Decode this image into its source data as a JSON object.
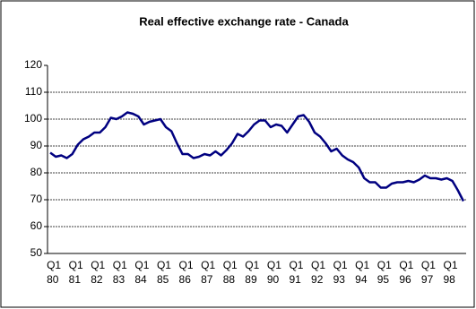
{
  "chart_data": {
    "type": "line",
    "title": "Real effective exchange rate - Canada",
    "categories": [
      [
        "Q1",
        "80"
      ],
      null,
      null,
      null,
      [
        "Q1",
        "81"
      ],
      null,
      null,
      null,
      [
        "Q1",
        "82"
      ],
      null,
      null,
      null,
      [
        "Q1",
        "83"
      ],
      null,
      null,
      null,
      [
        "Q1",
        "84"
      ],
      null,
      null,
      null,
      [
        "Q1",
        "85"
      ],
      null,
      null,
      null,
      [
        "Q1",
        "86"
      ],
      null,
      null,
      null,
      [
        "Q1",
        "87"
      ],
      null,
      null,
      null,
      [
        "Q1",
        "88"
      ],
      null,
      null,
      null,
      [
        "Q1",
        "89"
      ],
      null,
      null,
      null,
      [
        "Q1",
        "90"
      ],
      null,
      null,
      null,
      [
        "Q1",
        "91"
      ],
      null,
      null,
      null,
      [
        "Q1",
        "92"
      ],
      null,
      null,
      null,
      [
        "Q1",
        "93"
      ],
      null,
      null,
      null,
      [
        "Q1",
        "94"
      ],
      null,
      null,
      null,
      [
        "Q1",
        "95"
      ],
      null,
      null,
      null,
      [
        "Q1",
        "96"
      ],
      null,
      null,
      null,
      [
        "Q1",
        "97"
      ],
      null,
      null,
      null,
      [
        "Q1",
        "98"
      ],
      null,
      null,
      null
    ],
    "values": [
      87.5,
      86,
      86.5,
      85.5,
      87,
      90.5,
      92.5,
      93.5,
      95,
      95,
      97,
      100.5,
      100,
      101,
      102.5,
      102,
      101,
      98,
      99,
      99.5,
      100,
      97,
      95.5,
      91,
      87,
      87,
      85.5,
      86,
      87,
      86.5,
      88,
      86.5,
      88.5,
      91,
      94.5,
      93.5,
      95.5,
      98,
      99.5,
      99.5,
      97,
      98,
      97.5,
      95,
      98,
      101,
      101.5,
      99,
      95,
      93.5,
      91,
      88,
      89,
      86.5,
      85,
      84,
      82,
      78,
      76.5,
      76.5,
      74.5,
      74.5,
      76,
      76.5,
      76.5,
      77,
      76.5,
      77.5,
      79,
      78,
      78,
      77.5,
      78,
      77,
      73.5,
      69.5
    ],
    "color": "#000080",
    "ylim": [
      50,
      120
    ],
    "yticks": [
      50,
      60,
      70,
      80,
      90,
      100,
      110,
      120
    ],
    "grid": true
  }
}
